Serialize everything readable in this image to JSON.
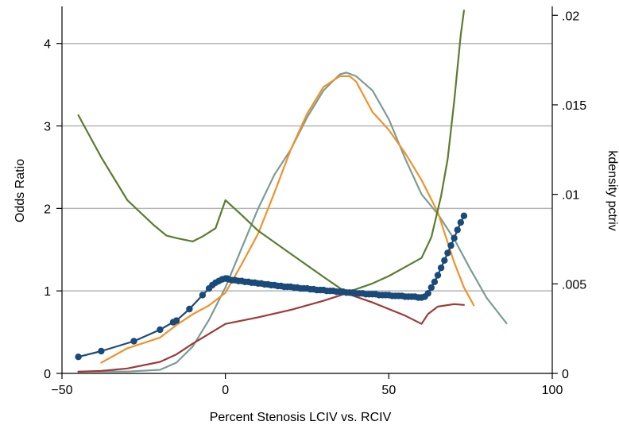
{
  "chart_data": {
    "type": "line",
    "title": "",
    "xlabel": "Percent Stenosis LCIV vs. RCIV",
    "ylabel": "Odds Ratio",
    "y2label": "kdensity pctriv",
    "xlim": [
      -50,
      100
    ],
    "ylim": [
      0,
      4.45
    ],
    "y2lim": [
      0,
      0.0205
    ],
    "x_ticks": [
      -50,
      0,
      50,
      100
    ],
    "x_tick_labels": [
      "−50",
      "0",
      "50",
      "100"
    ],
    "y_ticks": [
      0,
      1,
      2,
      3,
      4
    ],
    "y_tick_labels": [
      "0",
      "1",
      "2",
      "3",
      "4"
    ],
    "y2_ticks": [
      0,
      0.005,
      0.01,
      0.015,
      0.02
    ],
    "y2_tick_labels": [
      "0",
      ".005",
      ".01",
      ".015",
      ".02"
    ],
    "grid": true,
    "legend": "none",
    "colors": {
      "navy": "#1a4a7a",
      "orange": "#f0922b",
      "teal": "#7a9c95",
      "olive": "#5a7d2e",
      "maroon": "#9e3a38",
      "grid": "#b4b4b4"
    },
    "series": [
      {
        "color": "#7a9c95",
        "axis": "y2",
        "style": "line",
        "x": [
          -45,
          -30,
          -20,
          -15,
          -10,
          -5,
          0,
          5,
          10,
          15,
          20,
          25,
          30,
          35,
          37,
          40,
          45,
          50,
          55,
          60,
          65,
          70,
          75,
          80,
          86
        ],
        "y": [
          0.0001,
          0.0001,
          0.0002,
          0.0006,
          0.0015,
          0.003,
          0.0048,
          0.007,
          0.0092,
          0.0111,
          0.0125,
          0.0143,
          0.0158,
          0.0167,
          0.0168,
          0.0166,
          0.0158,
          0.0142,
          0.012,
          0.01,
          0.0089,
          0.0075,
          0.0058,
          0.0042,
          0.0028
        ]
      },
      {
        "color": "#f0922b",
        "axis": "y2",
        "style": "line",
        "x": [
          -38,
          -30,
          -20,
          -15,
          -10,
          -5,
          0,
          5,
          10,
          15,
          20,
          25,
          30,
          35,
          38,
          40,
          45,
          50,
          55,
          60,
          65,
          70,
          73,
          76
        ],
        "y": [
          0.0006,
          0.0014,
          0.002,
          0.0027,
          0.0033,
          0.0038,
          0.0045,
          0.0061,
          0.0078,
          0.0101,
          0.0125,
          0.0145,
          0.016,
          0.0166,
          0.0166,
          0.0163,
          0.0146,
          0.0136,
          0.0123,
          0.0108,
          0.009,
          0.0062,
          0.0048,
          0.0038
        ]
      },
      {
        "color": "#5a7d2e",
        "axis": "y1",
        "style": "line",
        "x": [
          -45,
          -38,
          -30,
          -22,
          -18,
          -15,
          -10,
          -7,
          -3,
          0,
          5,
          10,
          20,
          30,
          37,
          45,
          50,
          55,
          60,
          63,
          66,
          68,
          70,
          72,
          73
        ],
        "y": [
          3.13,
          2.62,
          2.1,
          1.8,
          1.67,
          1.64,
          1.6,
          1.66,
          1.76,
          2.1,
          1.92,
          1.73,
          1.45,
          1.17,
          0.98,
          1.09,
          1.18,
          1.29,
          1.4,
          1.65,
          2.15,
          2.6,
          3.3,
          4.1,
          4.4
        ]
      },
      {
        "color": "#9e3a38",
        "axis": "y1",
        "style": "line",
        "x": [
          -45,
          -38,
          -30,
          -20,
          -15,
          -10,
          -5,
          0,
          10,
          20,
          30,
          37,
          45,
          50,
          55,
          60,
          62,
          65,
          70,
          73
        ],
        "y": [
          0.02,
          0.03,
          0.06,
          0.14,
          0.23,
          0.36,
          0.48,
          0.6,
          0.68,
          0.77,
          0.88,
          0.97,
          0.86,
          0.78,
          0.7,
          0.6,
          0.72,
          0.81,
          0.84,
          0.83
        ]
      },
      {
        "color": "#1a4a7a",
        "axis": "y1",
        "style": "line-markers",
        "x": [
          -45,
          -38,
          -28,
          -20,
          -16,
          -15,
          -11,
          -7,
          -5,
          -4,
          -3,
          -2,
          -1,
          0,
          0.5,
          1,
          2,
          3,
          4,
          5,
          6,
          7,
          8,
          9,
          10,
          11,
          12,
          13,
          14,
          15,
          16,
          17,
          18,
          19,
          20,
          21,
          22,
          23,
          24,
          25,
          26,
          27,
          28,
          29,
          30,
          31,
          32,
          33,
          34,
          35,
          36,
          37,
          38,
          39,
          40,
          41,
          42,
          43,
          44,
          45,
          46,
          47,
          48,
          49,
          50,
          51,
          52,
          53,
          54,
          55,
          56,
          57,
          58,
          59,
          60,
          61,
          62,
          63,
          64,
          65,
          66,
          67,
          68,
          69,
          70,
          71,
          72,
          73
        ],
        "y": [
          0.2,
          0.27,
          0.39,
          0.53,
          0.62,
          0.64,
          0.78,
          0.95,
          1.03,
          1.07,
          1.1,
          1.12,
          1.14,
          1.15,
          1.15,
          1.14,
          1.13,
          1.13,
          1.12,
          1.12,
          1.11,
          1.11,
          1.1,
          1.1,
          1.09,
          1.09,
          1.08,
          1.08,
          1.07,
          1.07,
          1.06,
          1.06,
          1.05,
          1.05,
          1.05,
          1.04,
          1.04,
          1.03,
          1.03,
          1.03,
          1.02,
          1.02,
          1.01,
          1.01,
          1.01,
          1.0,
          1.0,
          1.0,
          0.99,
          0.99,
          0.99,
          0.98,
          0.98,
          0.98,
          0.97,
          0.97,
          0.97,
          0.96,
          0.96,
          0.96,
          0.96,
          0.95,
          0.95,
          0.95,
          0.95,
          0.94,
          0.94,
          0.94,
          0.94,
          0.93,
          0.93,
          0.93,
          0.93,
          0.92,
          0.92,
          0.93,
          0.97,
          1.04,
          1.11,
          1.19,
          1.28,
          1.37,
          1.46,
          1.55,
          1.64,
          1.74,
          1.83,
          1.91
        ]
      }
    ]
  }
}
